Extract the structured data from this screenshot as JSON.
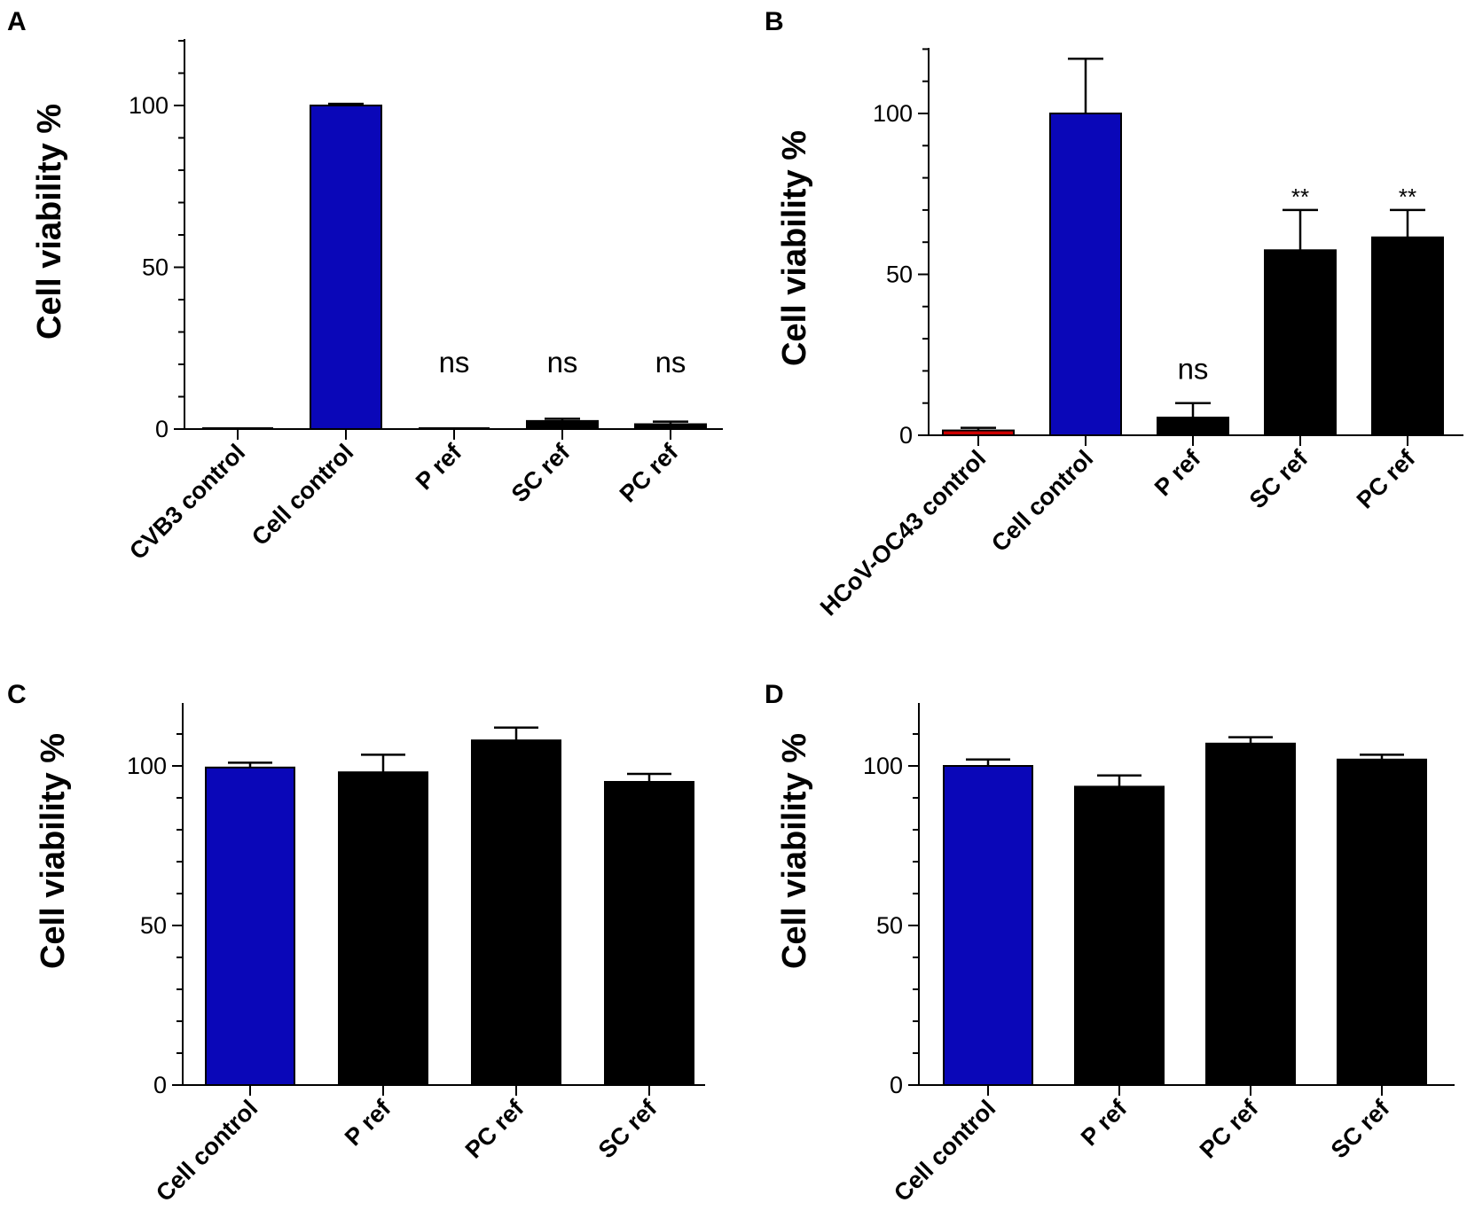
{
  "chart_data": [
    {
      "panel": "A",
      "type": "bar",
      "title": "",
      "xlabel": "",
      "ylabel": "Cell viability %",
      "ylim": [
        0,
        120
      ],
      "yticks": [
        0,
        50,
        100
      ],
      "categories": [
        "CVB3 control",
        "Cell control",
        "P ref",
        "SC ref",
        "PC ref"
      ],
      "values": [
        0,
        100,
        0,
        2.5,
        1.5
      ],
      "errors": [
        0,
        0.5,
        0,
        0.7,
        0.8
      ],
      "colors": [
        "#cc0000",
        "#0a07b8",
        "#000000",
        "#000000",
        "#000000"
      ],
      "annotations": [
        "",
        "",
        "ns",
        "ns",
        "ns"
      ]
    },
    {
      "panel": "B",
      "type": "bar",
      "title": "",
      "xlabel": "",
      "ylabel": "Cell viability %",
      "ylim": [
        0,
        120
      ],
      "yticks": [
        0,
        50,
        100
      ],
      "categories": [
        "HCoV-OC43 control",
        "Cell control",
        "P ref",
        "SC ref",
        "PC ref"
      ],
      "values": [
        1.5,
        100,
        5.5,
        57.5,
        61.5
      ],
      "errors": [
        0.8,
        17,
        4.5,
        12.5,
        8.5
      ],
      "colors": [
        "#cc0000",
        "#0a07b8",
        "#000000",
        "#000000",
        "#000000"
      ],
      "annotations": [
        "",
        "",
        "ns",
        "**",
        "**"
      ]
    },
    {
      "panel": "C",
      "type": "bar",
      "title": "",
      "xlabel": "",
      "ylabel": "Cell viability %",
      "ylim": [
        0,
        120
      ],
      "yticks": [
        0,
        50,
        100
      ],
      "categories": [
        "Cell control",
        "P ref",
        "PC ref",
        "SC ref"
      ],
      "values": [
        99.5,
        98,
        108,
        95
      ],
      "errors": [
        1.5,
        5.5,
        4,
        2.5
      ],
      "colors": [
        "#0a07b8",
        "#000000",
        "#000000",
        "#000000"
      ],
      "annotations": [
        "",
        "",
        "",
        ""
      ]
    },
    {
      "panel": "D",
      "type": "bar",
      "title": "",
      "xlabel": "",
      "ylabel": "Cell viability %",
      "ylim": [
        0,
        120
      ],
      "yticks": [
        0,
        50,
        100
      ],
      "categories": [
        "Cell control",
        "P ref",
        "PC ref",
        "SC ref"
      ],
      "values": [
        100,
        93.5,
        107,
        102
      ],
      "errors": [
        2,
        3.5,
        2,
        1.5
      ],
      "colors": [
        "#0a07b8",
        "#000000",
        "#000000",
        "#000000"
      ],
      "annotations": [
        "",
        "",
        "",
        ""
      ]
    }
  ]
}
